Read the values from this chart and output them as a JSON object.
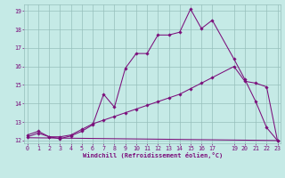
{
  "xlabel": "Windchill (Refroidissement éolien,°C)",
  "bg_color": "#c5eae6",
  "grid_color": "#96bfbb",
  "line_color": "#7b0e7b",
  "xlim": [
    -0.3,
    23.3
  ],
  "ylim": [
    11.85,
    19.35
  ],
  "ytick_vals": [
    12,
    13,
    14,
    15,
    16,
    17,
    18,
    19
  ],
  "xtick_vals": [
    0,
    1,
    2,
    3,
    4,
    5,
    6,
    7,
    8,
    9,
    10,
    11,
    12,
    13,
    14,
    15,
    16,
    17,
    19,
    20,
    21,
    22,
    23
  ],
  "line1_x": [
    0,
    1,
    2,
    3,
    4,
    5,
    6,
    7,
    8,
    9,
    10,
    11,
    12,
    13,
    14,
    15,
    16,
    17,
    19,
    20,
    21,
    22,
    23
  ],
  "line1_y": [
    12.3,
    12.5,
    12.2,
    12.1,
    12.25,
    12.5,
    12.85,
    14.5,
    13.8,
    15.9,
    16.7,
    16.7,
    17.7,
    17.7,
    17.85,
    19.1,
    18.05,
    18.5,
    16.4,
    15.3,
    14.1,
    12.7,
    12.0
  ],
  "line2_x": [
    0,
    1,
    2,
    3,
    4,
    5,
    6,
    7,
    8,
    9,
    10,
    11,
    12,
    13,
    14,
    15,
    16,
    17,
    19,
    20,
    21,
    22,
    23
  ],
  "line2_y": [
    12.2,
    12.4,
    12.2,
    12.2,
    12.3,
    12.6,
    12.9,
    13.1,
    13.3,
    13.5,
    13.7,
    13.9,
    14.1,
    14.3,
    14.5,
    14.8,
    15.1,
    15.4,
    16.0,
    15.2,
    15.1,
    14.9,
    12.0
  ],
  "line3_x": [
    0,
    23
  ],
  "line3_y": [
    12.15,
    12.0
  ],
  "marker_size": 1.8,
  "line_width": 0.75,
  "tick_fontsize": 4.8,
  "xlabel_fontsize": 5.0
}
